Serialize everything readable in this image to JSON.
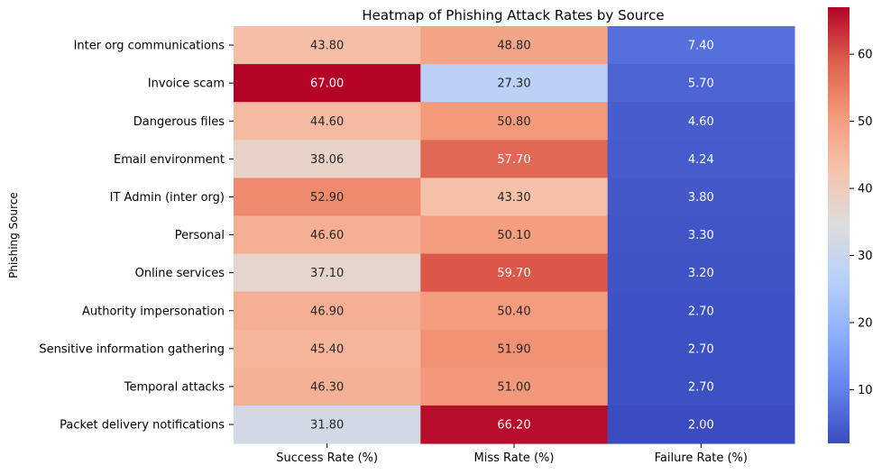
{
  "chart_data": {
    "type": "heatmap",
    "title": "Heatmap of Phishing Attack Rates by Source",
    "xlabel": "",
    "ylabel": "Phishing Source",
    "columns": [
      "Success Rate (%)",
      "Miss Rate (%)",
      "Failure Rate (%)"
    ],
    "rows": [
      "Inter org communications",
      "Invoice scam",
      "Dangerous files",
      "Email environment",
      "IT Admin (inter org)",
      "Personal",
      "Online services",
      "Authority impersonation",
      "Sensitive information gathering",
      "Temporal attacks",
      "Packet delivery notifications"
    ],
    "values": [
      [
        43.8,
        48.8,
        7.4
      ],
      [
        67.0,
        27.3,
        5.7
      ],
      [
        44.6,
        50.8,
        4.6
      ],
      [
        38.06,
        57.7,
        4.24
      ],
      [
        52.9,
        43.3,
        3.8
      ],
      [
        46.6,
        50.1,
        3.3
      ],
      [
        37.1,
        59.7,
        3.2
      ],
      [
        46.9,
        50.4,
        2.7
      ],
      [
        45.4,
        51.9,
        2.7
      ],
      [
        46.3,
        51.0,
        2.7
      ],
      [
        31.8,
        66.2,
        2.0
      ]
    ],
    "colormap": "coolwarm",
    "vmin": 2.0,
    "vmax": 67.0,
    "colorbar_ticks": [
      10,
      20,
      30,
      40,
      50,
      60
    ]
  }
}
